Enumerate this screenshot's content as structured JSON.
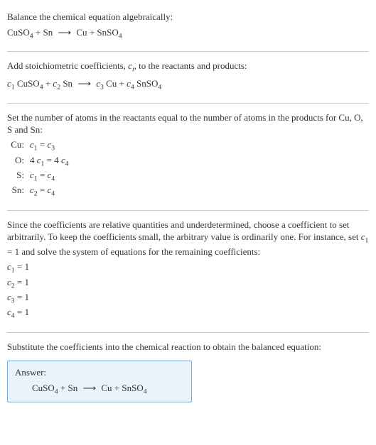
{
  "section1": {
    "heading": "Balance the chemical equation algebraically:",
    "reactant1": "CuSO",
    "reactant1_sub": "4",
    "reactant2": "Sn",
    "product1": "Cu",
    "product2": "SnSO",
    "product2_sub": "4"
  },
  "section2": {
    "heading_pre": "Add stoichiometric coefficients, ",
    "heading_var": "c",
    "heading_var_sub": "i",
    "heading_post": ", to the reactants and products:",
    "c1": "c",
    "c1_sub": "1",
    "r1": "CuSO",
    "r1_sub": "4",
    "c2": "c",
    "c2_sub": "2",
    "r2": "Sn",
    "c3": "c",
    "c3_sub": "3",
    "p1": "Cu",
    "c4": "c",
    "c4_sub": "4",
    "p2": "SnSO",
    "p2_sub": "4"
  },
  "section3": {
    "heading": "Set the number of atoms in the reactants equal to the number of atoms in the products for Cu, O, S and Sn:",
    "rows": [
      {
        "label": "Cu:",
        "lhs_pre": "",
        "lhs_c": "c",
        "lhs_sub": "1",
        "rhs_pre": "",
        "rhs_c": "c",
        "rhs_sub": "3"
      },
      {
        "label": "O:",
        "lhs_pre": "4 ",
        "lhs_c": "c",
        "lhs_sub": "1",
        "rhs_pre": "4 ",
        "rhs_c": "c",
        "rhs_sub": "4"
      },
      {
        "label": "S:",
        "lhs_pre": "",
        "lhs_c": "c",
        "lhs_sub": "1",
        "rhs_pre": "",
        "rhs_c": "c",
        "rhs_sub": "4"
      },
      {
        "label": "Sn:",
        "lhs_pre": "",
        "lhs_c": "c",
        "lhs_sub": "2",
        "rhs_pre": "",
        "rhs_c": "c",
        "rhs_sub": "4"
      }
    ]
  },
  "section4": {
    "text_pre": "Since the coefficients are relative quantities and underdetermined, choose a coefficient to set arbitrarily. To keep the coefficients small, the arbitrary value is ordinarily one. For instance, set ",
    "text_var": "c",
    "text_var_sub": "1",
    "text_post": " = 1 and solve the system of equations for the remaining coefficients:",
    "coeffs": [
      {
        "c": "c",
        "sub": "1",
        "val": " = 1"
      },
      {
        "c": "c",
        "sub": "2",
        "val": " = 1"
      },
      {
        "c": "c",
        "sub": "3",
        "val": " = 1"
      },
      {
        "c": "c",
        "sub": "4",
        "val": " = 1"
      }
    ]
  },
  "section5": {
    "heading": "Substitute the coefficients into the chemical reaction to obtain the balanced equation:",
    "answer_label": "Answer:",
    "r1": "CuSO",
    "r1_sub": "4",
    "r2": "Sn",
    "p1": "Cu",
    "p2": "SnSO",
    "p2_sub": "4"
  },
  "glyphs": {
    "arrow": "⟶",
    "plus": " + ",
    "eq": " = "
  }
}
